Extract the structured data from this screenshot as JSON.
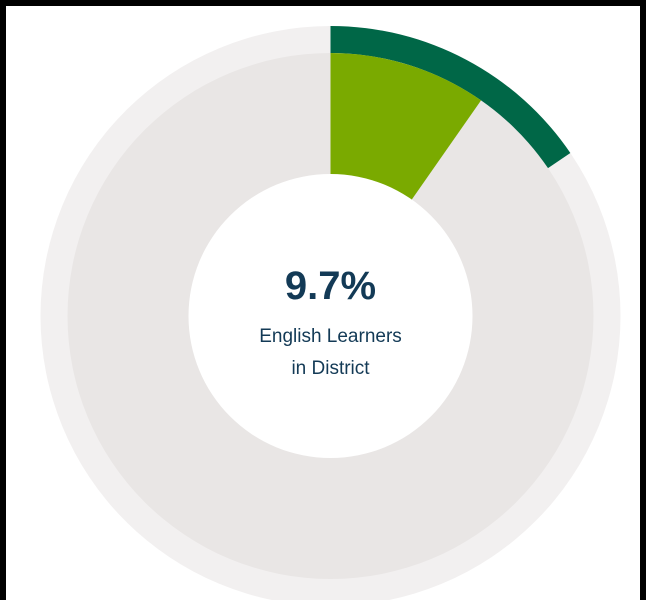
{
  "chart_data": {
    "type": "pie",
    "variant": "nested-donut",
    "center_value": "9.7%",
    "center_label_line1": "English Learners",
    "center_label_line2": "in District",
    "rings": [
      {
        "ring": "outer",
        "value_percent": 15.5,
        "color": "#006747",
        "track_color": "#f2f0f0"
      },
      {
        "ring": "inner",
        "value_percent": 9.7,
        "color": "#7aaa00",
        "track_color": "#e9e6e5"
      }
    ]
  },
  "colors": {
    "frame": "#000000",
    "panel": "#ffffff",
    "text": "#133a56"
  }
}
